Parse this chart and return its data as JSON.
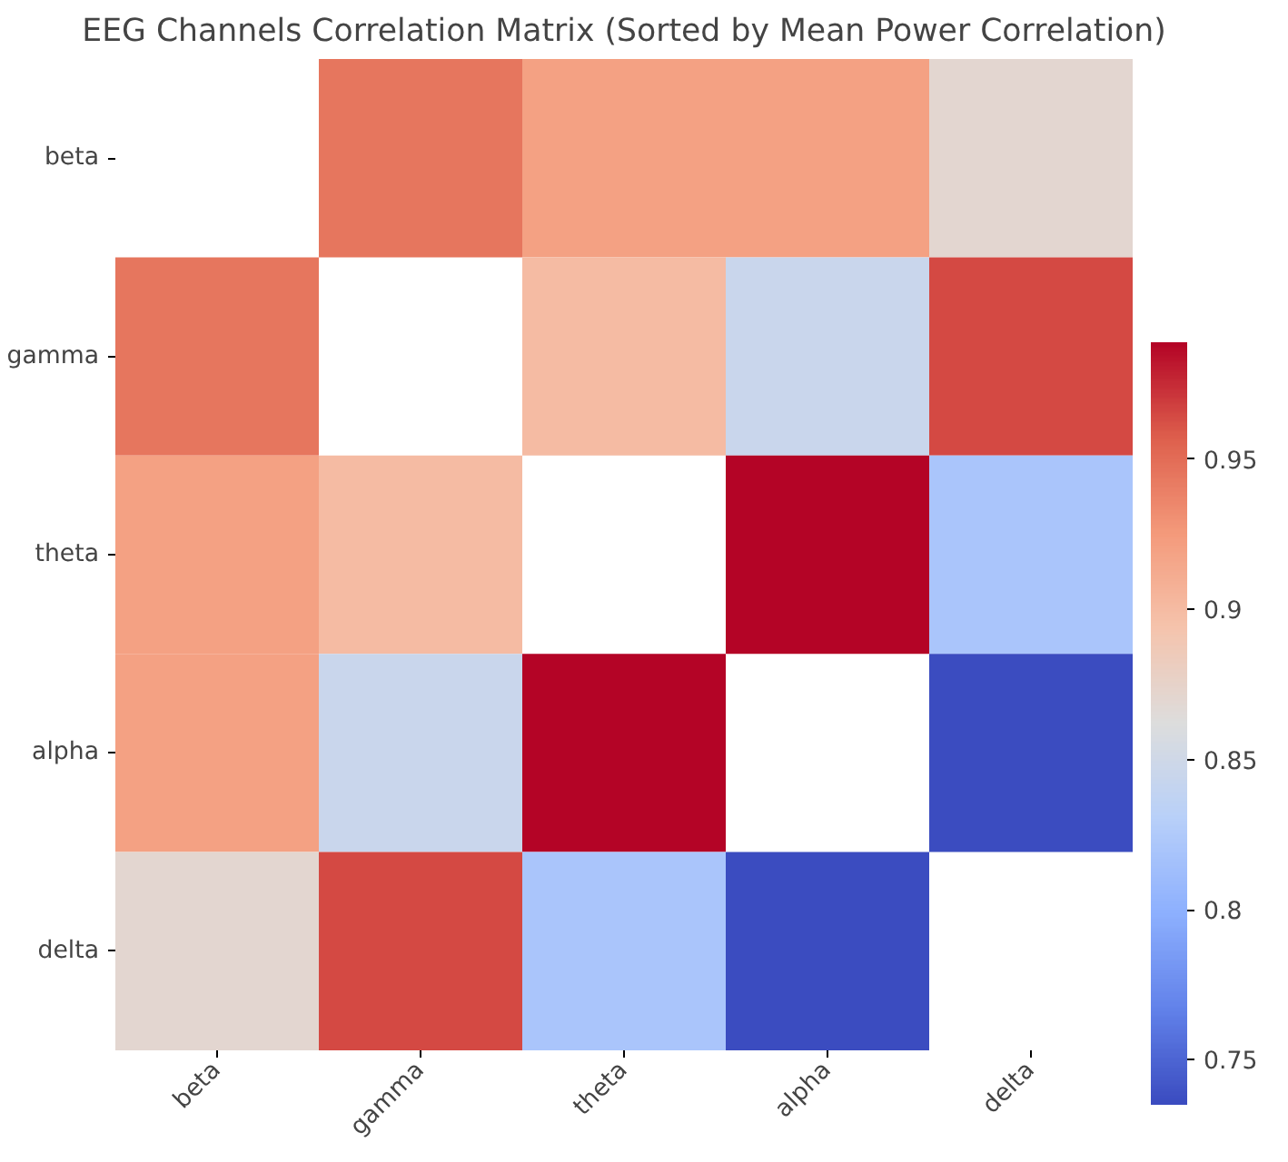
{
  "chart_data": {
    "type": "heatmap",
    "title": "EEG Channels Correlation Matrix (Sorted by Mean Power Correlation)",
    "categories": [
      "beta",
      "gamma",
      "theta",
      "alpha",
      "delta"
    ],
    "y_categories": [
      "beta",
      "gamma",
      "theta",
      "alpha",
      "delta"
    ],
    "cells": [
      [
        null,
        0.945,
        0.92,
        0.92,
        0.87
      ],
      [
        0.945,
        null,
        0.9,
        0.845,
        0.965
      ],
      [
        0.92,
        0.9,
        null,
        0.989,
        0.82
      ],
      [
        0.92,
        0.845,
        0.989,
        null,
        0.735
      ],
      [
        0.87,
        0.965,
        0.82,
        0.735,
        null
      ]
    ],
    "clim": [
      0.735,
      0.989
    ],
    "cticks": [
      0.75,
      0.8,
      0.85,
      0.9,
      0.95
    ]
  }
}
